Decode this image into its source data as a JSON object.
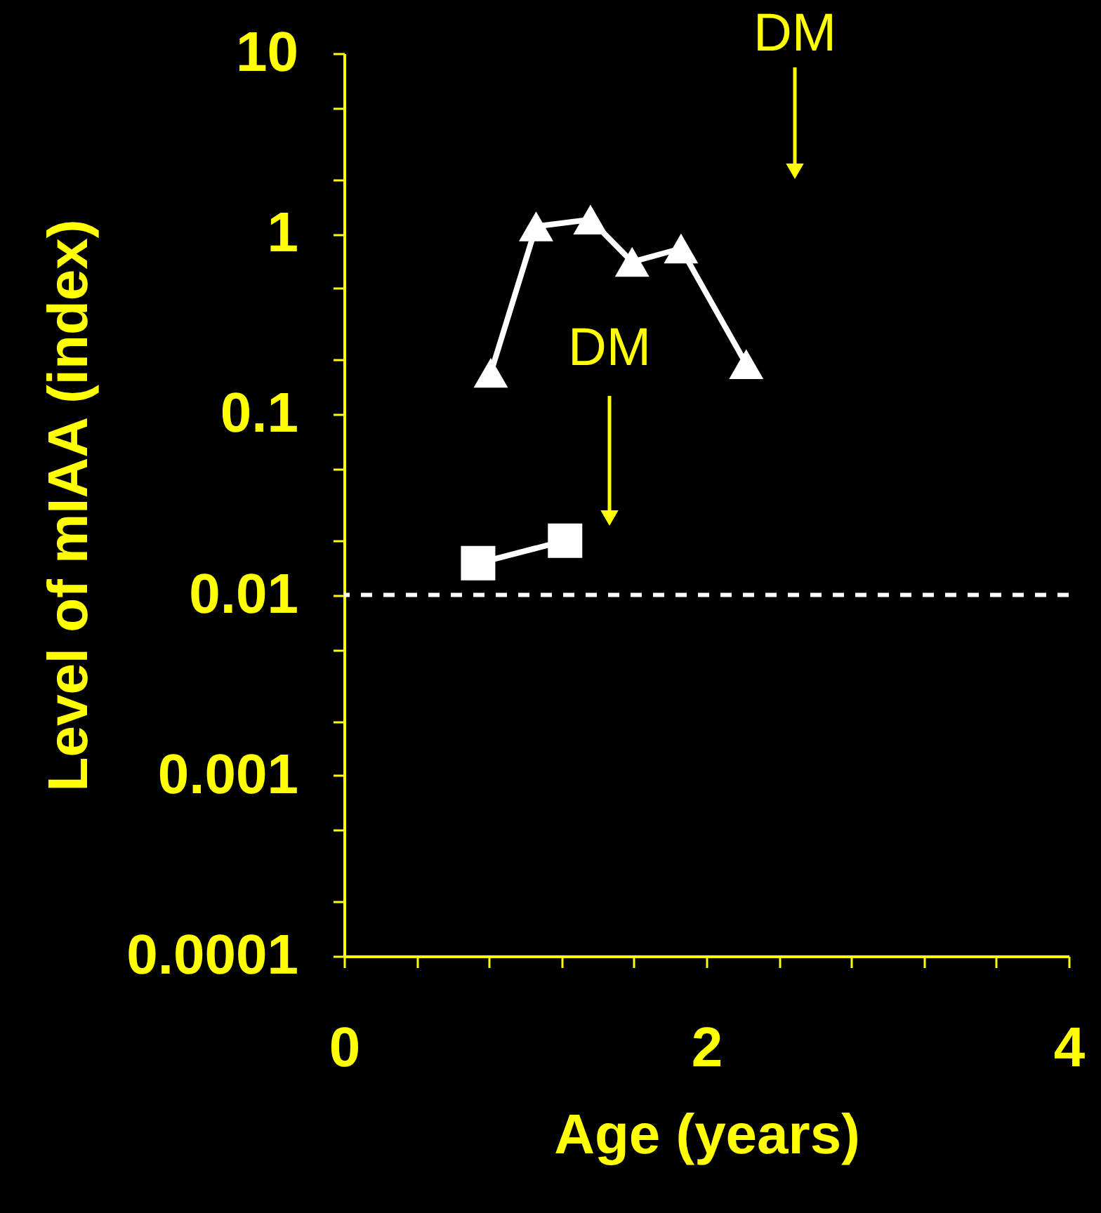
{
  "chart_data": {
    "type": "line",
    "xlabel": "Age (years)",
    "ylabel": "Level of mIAA (index)",
    "series": [
      {
        "color": "#ffffff",
        "marker": "triangle",
        "x": [
          0.81,
          1.06,
          1.36,
          1.59,
          1.86,
          2.22
        ],
        "values": [
          0.17,
          1.1,
          1.2,
          0.7,
          0.83,
          0.19
        ]
      },
      {
        "color": "#ffffff",
        "marker": "square",
        "x": [
          0.74,
          1.22
        ],
        "values": [
          0.015,
          0.02
        ]
      }
    ],
    "log": "y",
    "grid": false,
    "line_style": "solid",
    "xlim": [
      0,
      4
    ],
    "xticks": [
      0,
      {
        "value": 0.4,
        "label": null
      },
      {
        "value": 0.8,
        "label": null
      },
      {
        "value": 1.2,
        "label": null
      },
      {
        "value": 1.6,
        "label": null
      },
      2,
      {
        "value": 2.4,
        "label": null
      },
      {
        "value": 2.8,
        "label": null
      },
      {
        "value": 3.2,
        "label": null
      },
      {
        "value": 3.6,
        "label": null
      },
      4
    ],
    "ylim": [
      0.0001,
      10
    ],
    "yticks": [
      0.0001,
      {
        "value": 0.0002,
        "label": null
      },
      {
        "value": 0.0005,
        "label": null
      },
      0.001,
      {
        "value": 0.002,
        "label": null
      },
      {
        "value": 0.005,
        "label": null
      },
      0.01,
      {
        "value": 0.02,
        "label": null
      },
      {
        "value": 0.05,
        "label": null
      },
      0.1,
      {
        "value": 0.2,
        "label": null
      },
      {
        "value": 0.5,
        "label": null
      },
      1,
      {
        "value": 2,
        "label": null
      },
      {
        "value": 5,
        "label": null
      },
      10
    ],
    "ref_lines": [
      {
        "axis": "y",
        "value": 0.01,
        "color": "#ffffff",
        "line_style": "dashed"
      }
    ],
    "annotations": [
      "DM",
      "DM"
    ]
  }
}
